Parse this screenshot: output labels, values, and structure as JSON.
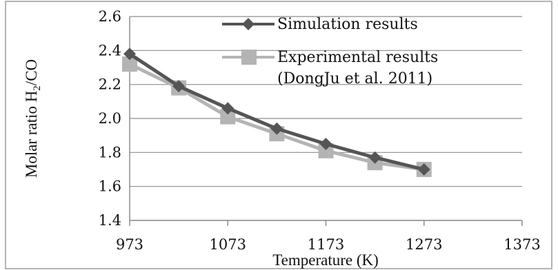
{
  "chart_data": {
    "type": "line",
    "title": "",
    "xlabel": "Temperature (K)",
    "ylabel": "Molar ratio H",
    "ylabel_sub": "2",
    "ylabel_suffix": "/CO",
    "xlim": [
      973,
      1373
    ],
    "ylim": [
      1.4,
      2.6
    ],
    "xticks": [
      973,
      1073,
      1173,
      1273,
      1373
    ],
    "yticks": [
      "1.4",
      "1.6",
      "1.8",
      "2.0",
      "2.2",
      "2.4",
      "2.6"
    ],
    "grid": true,
    "legend_position": "top-right",
    "series": [
      {
        "name": "Simulation results",
        "color": "#555555",
        "marker": "diamond",
        "x": [
          973,
          1023,
          1073,
          1123,
          1173,
          1223,
          1273
        ],
        "y": [
          2.38,
          2.19,
          2.06,
          1.94,
          1.85,
          1.77,
          1.7
        ]
      },
      {
        "name": "Experimental results",
        "name_line2": "(DongJu et al. 2011)",
        "color": "#b4b4b4",
        "marker": "square",
        "x": [
          973,
          1023,
          1073,
          1123,
          1173,
          1223,
          1273
        ],
        "y": [
          2.32,
          2.18,
          2.01,
          1.91,
          1.81,
          1.74,
          1.7
        ]
      }
    ]
  }
}
